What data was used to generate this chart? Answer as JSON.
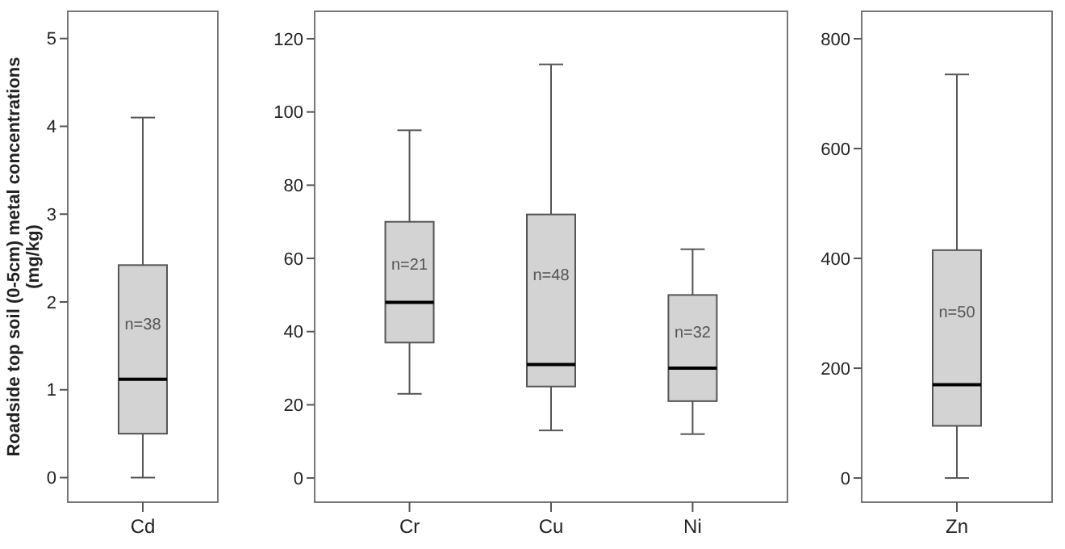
{
  "chart_data": [
    {
      "type": "box",
      "ylabel": "Roadside top soil (0-5cm) metal concentrations (mg/kg)",
      "categories": [
        "Cd"
      ],
      "ylim": [
        -0.28,
        5.31
      ],
      "yticks": [
        0,
        1,
        2,
        3,
        4,
        5
      ],
      "series": [
        {
          "color": "#d3d3d3",
          "boxes": [
            {
              "low": 0,
              "q1": 0.5,
              "median": 1.12,
              "q3": 2.42,
              "high": 4.1
            }
          ]
        }
      ],
      "annotations": [
        "n=38"
      ]
    },
    {
      "type": "box",
      "categories": [
        "Cr",
        "Cu",
        "Ni"
      ],
      "ylim": [
        -6.6,
        127.5
      ],
      "yticks": [
        0,
        20,
        40,
        60,
        80,
        100,
        120
      ],
      "series": [
        {
          "color": "#d3d3d3",
          "boxes": [
            {
              "low": 23,
              "q1": 37,
              "median": 48,
              "q3": 70,
              "high": 95
            },
            {
              "low": 13,
              "q1": 25,
              "median": 31,
              "q3": 72,
              "high": 113
            },
            {
              "low": 12,
              "q1": 21,
              "median": 30,
              "q3": 50,
              "high": 62.5
            }
          ]
        }
      ],
      "annotations": [
        "n=21",
        "n=48",
        "n=32"
      ]
    },
    {
      "type": "box",
      "categories": [
        "Zn"
      ],
      "ylim": [
        -44,
        850
      ],
      "yticks": [
        0,
        200,
        400,
        600,
        800
      ],
      "series": [
        {
          "color": "#d3d3d3",
          "boxes": [
            {
              "low": 0,
              "q1": 95,
              "median": 170,
              "q3": 415,
              "high": 735
            }
          ]
        }
      ],
      "annotations": [
        "n=50"
      ]
    }
  ]
}
